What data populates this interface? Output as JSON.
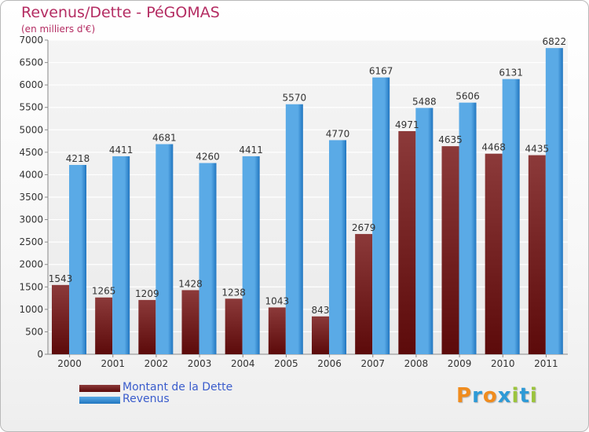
{
  "title": "Revenus/Dette - PéGOMAS",
  "subtitle": "(en milliers d'€)",
  "colors": {
    "dette_dark": "#5c0a0a",
    "dette_light": "#8c3a3a",
    "revenus_dark": "#2176c0",
    "revenus_light": "#5aaae6",
    "grid": "#ffffff",
    "axis_text": "#333333"
  },
  "legend": {
    "dette_label": "Montant de la Dette",
    "revenus_label": "Revenus"
  },
  "logo": {
    "text": "Proxiti"
  },
  "chart_data": {
    "type": "bar",
    "categories": [
      "2000",
      "2001",
      "2002",
      "2003",
      "2004",
      "2005",
      "2006",
      "2007",
      "2008",
      "2009",
      "2010",
      "2011"
    ],
    "series": [
      {
        "name": "Montant de la Dette",
        "values": [
          1543,
          1265,
          1209,
          1428,
          1238,
          1043,
          843,
          2679,
          4971,
          4635,
          4468,
          4435
        ]
      },
      {
        "name": "Revenus",
        "values": [
          4218,
          4411,
          4681,
          4260,
          4411,
          5570,
          4770,
          6167,
          5488,
          5606,
          6131,
          6822
        ]
      }
    ],
    "title": "Revenus/Dette - PéGOMAS",
    "subtitle": "(en milliers d'€)",
    "ylim": [
      0,
      7000
    ],
    "yticks": [
      0,
      500,
      1000,
      1500,
      2000,
      2500,
      3000,
      3500,
      4000,
      4500,
      5000,
      5500,
      6000,
      6500,
      7000
    ],
    "grid": true,
    "legend_position": "bottom-left"
  }
}
